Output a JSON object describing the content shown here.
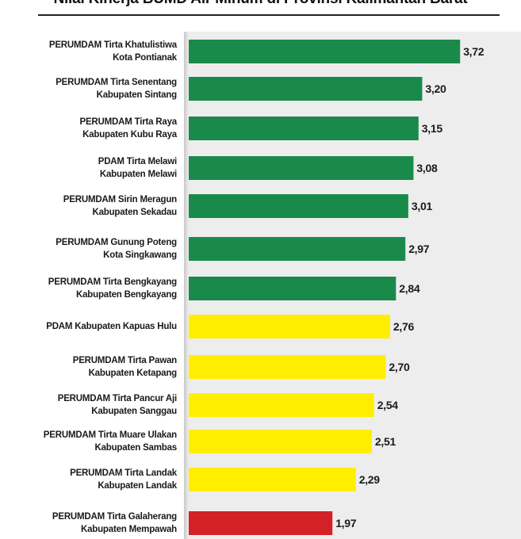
{
  "chart_data": {
    "type": "bar",
    "orientation": "horizontal",
    "title": "Nilai Kinerja BUMD Air Minum di Provinsi Kalimantan Barat",
    "xlim": [
      0,
      4
    ],
    "colors": {
      "sehat": "#1a8a4a",
      "kurang_sehat": "#ffee00",
      "sakit": "#d42027"
    },
    "categories": [
      {
        "line1": "PERUMDAM Tirta Khatulistiwa",
        "line2": "Kota Pontianak",
        "value": 3.72,
        "value_label": "3,72",
        "status": "sehat"
      },
      {
        "line1": "PERUMDAM Tirta Senentang",
        "line2": "Kabupaten Sintang",
        "value": 3.2,
        "value_label": "3,20",
        "status": "sehat"
      },
      {
        "line1": "PERUMDAM Tirta Raya",
        "line2": "Kabupaten Kubu Raya",
        "value": 3.15,
        "value_label": "3,15",
        "status": "sehat"
      },
      {
        "line1": "PDAM Tirta Melawi",
        "line2": "Kabupaten Melawi",
        "value": 3.08,
        "value_label": "3,08",
        "status": "sehat"
      },
      {
        "line1": "PERUMDAM Sirin Meragun",
        "line2": "Kabupaten Sekadau",
        "value": 3.01,
        "value_label": "3,01",
        "status": "sehat"
      },
      {
        "line1": "PERUMDAM Gunung Poteng",
        "line2": "Kota Singkawang",
        "value": 2.97,
        "value_label": "2,97",
        "status": "sehat"
      },
      {
        "line1": "PERUMDAM Tirta Bengkayang",
        "line2": "Kabupaten Bengkayang",
        "value": 2.84,
        "value_label": "2,84",
        "status": "sehat"
      },
      {
        "line1": "PDAM Kabupaten Kapuas Hulu",
        "line2": "",
        "value": 2.76,
        "value_label": "2,76",
        "status": "kurang_sehat"
      },
      {
        "line1": "PERUMDAM Tirta Pawan",
        "line2": "Kabupaten Ketapang",
        "value": 2.7,
        "value_label": "2,70",
        "status": "kurang_sehat"
      },
      {
        "line1": "PERUMDAM Tirta Pancur Aji",
        "line2": "Kabupaten Sanggau",
        "value": 2.54,
        "value_label": "2,54",
        "status": "kurang_sehat"
      },
      {
        "line1": "PERUMDAM Tirta Muare Ulakan",
        "line2": "Kabupaten Sambas",
        "value": 2.51,
        "value_label": "2,51",
        "status": "kurang_sehat"
      },
      {
        "line1": "PERUMDAM Tirta Landak",
        "line2": "Kabupaten Landak",
        "value": 2.29,
        "value_label": "2,29",
        "status": "kurang_sehat"
      },
      {
        "line1": "PERUMDAM Tirta Galaherang",
        "line2": "Kabupaten Mempawah",
        "value": 1.97,
        "value_label": "1,97",
        "status": "sakit"
      }
    ]
  }
}
